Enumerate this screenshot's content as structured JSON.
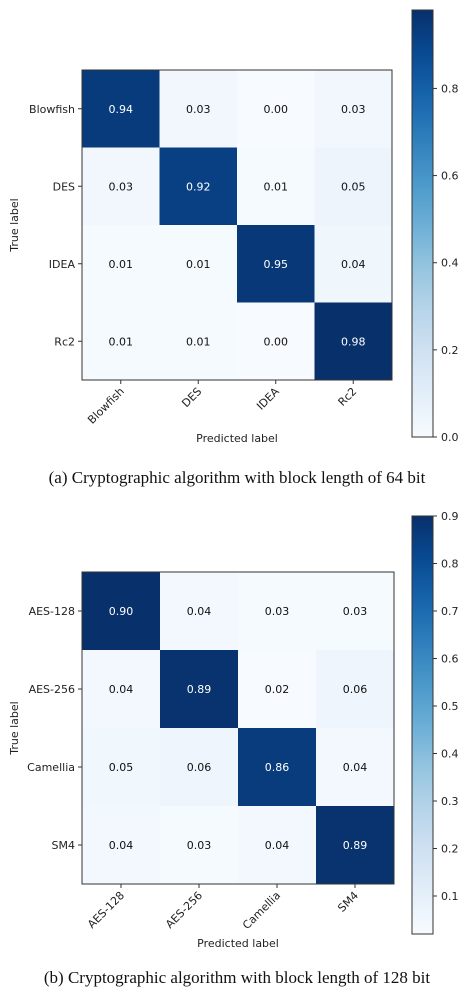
{
  "chart_data": [
    {
      "type": "heatmap",
      "caption": "(a)  Cryptographic algorithm with block length of 64 bit",
      "xlabel": "Predicted label",
      "ylabel": "True label",
      "rows": [
        "Blowfish",
        "DES",
        "IDEA",
        "Rc2"
      ],
      "cols": [
        "Blowfish",
        "DES",
        "IDEA",
        "Rc2"
      ],
      "values": [
        [
          0.94,
          0.03,
          0.0,
          0.03
        ],
        [
          0.03,
          0.92,
          0.01,
          0.05
        ],
        [
          0.01,
          0.01,
          0.95,
          0.04
        ],
        [
          0.01,
          0.01,
          0.0,
          0.98
        ]
      ],
      "value_labels": [
        [
          "0.94",
          "0.03",
          "0.00",
          "0.03"
        ],
        [
          "0.03",
          "0.92",
          "0.01",
          "0.05"
        ],
        [
          "0.01",
          "0.01",
          "0.95",
          "0.04"
        ],
        [
          "0.01",
          "0.01",
          "0.00",
          "0.98"
        ]
      ],
      "colormap": "Blues",
      "colorbar": {
        "min": 0.0,
        "max": 0.98,
        "ticks": [
          0.0,
          0.2,
          0.4,
          0.6,
          0.8
        ],
        "tick_labels": [
          "0.0",
          "0.2",
          "0.4",
          "0.6",
          "0.8"
        ]
      }
    },
    {
      "type": "heatmap",
      "caption": "(b)  Cryptographic algorithm with block length of 128 bit",
      "xlabel": "Predicted label",
      "ylabel": "True label",
      "rows": [
        "AES-128",
        "AES-256",
        "Camellia",
        "SM4"
      ],
      "cols": [
        "AES-128",
        "AES-256",
        "Camellia",
        "SM4"
      ],
      "values": [
        [
          0.9,
          0.04,
          0.03,
          0.03
        ],
        [
          0.04,
          0.89,
          0.02,
          0.06
        ],
        [
          0.05,
          0.06,
          0.86,
          0.04
        ],
        [
          0.04,
          0.03,
          0.04,
          0.89
        ]
      ],
      "value_labels": [
        [
          "0.90",
          "0.04",
          "0.03",
          "0.03"
        ],
        [
          "0.04",
          "0.89",
          "0.02",
          "0.06"
        ],
        [
          "0.05",
          "0.06",
          "0.86",
          "0.04"
        ],
        [
          "0.04",
          "0.03",
          "0.04",
          "0.89"
        ]
      ],
      "colormap": "Blues",
      "colorbar": {
        "min": 0.02,
        "max": 0.9,
        "ticks": [
          0.1,
          0.2,
          0.3,
          0.4,
          0.5,
          0.6,
          0.7,
          0.8,
          0.9
        ],
        "tick_labels": [
          "0.1",
          "0.2",
          "0.3",
          "0.4",
          "0.5",
          "0.6",
          "0.7",
          "0.8",
          "0.9"
        ]
      }
    }
  ]
}
